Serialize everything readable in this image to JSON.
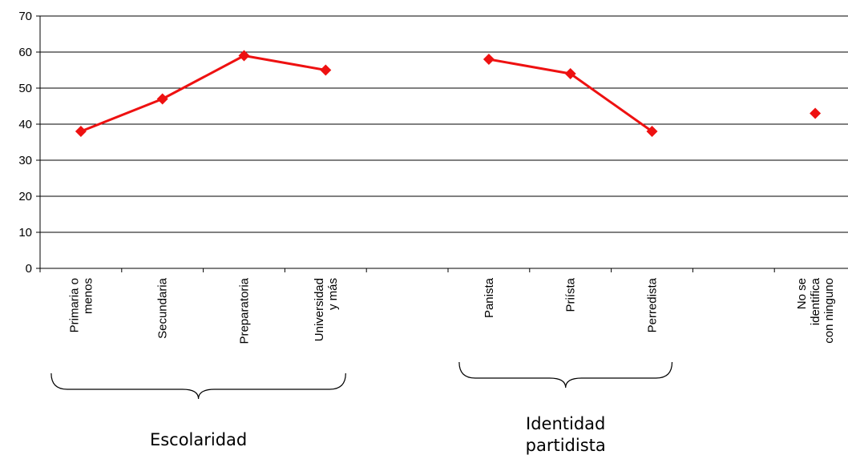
{
  "chart_data": {
    "type": "line",
    "ylim": [
      0,
      70
    ],
    "yticks": [
      0,
      10,
      20,
      30,
      40,
      50,
      60,
      70
    ],
    "grid": true,
    "series_color": "#ee1111",
    "categories": [
      [
        "Primaria o",
        "menos"
      ],
      [
        "Secundaria"
      ],
      [
        "Preparatoria"
      ],
      [
        "Universidad",
        "y más"
      ],
      [],
      [
        "Panista"
      ],
      [
        "Priísta"
      ],
      [
        "Perredista"
      ],
      [],
      [
        "No se",
        "identifica",
        "con ninguno"
      ]
    ],
    "values": [
      38,
      47,
      59,
      55,
      null,
      58,
      54,
      38,
      null,
      43
    ],
    "groups": [
      {
        "label": [
          "Escolaridad"
        ],
        "from": 0,
        "to": 3
      },
      {
        "label": [
          "Identidad",
          "partidista"
        ],
        "from": 5,
        "to": 7
      }
    ]
  }
}
